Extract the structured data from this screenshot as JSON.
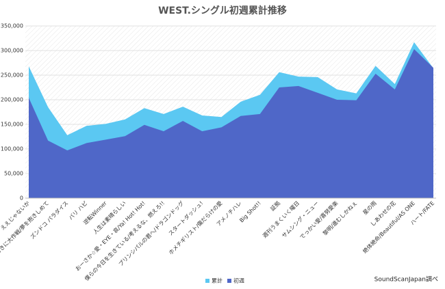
{
  "chart_data": {
    "type": "area",
    "title": "WEST.シングル初週累計推移",
    "categories": [
      "ええじゃないか",
      "おおきに大作戦/夢を抱きしめて",
      "ズンドコ パラダイス",
      "バリ ハピ",
      "逆転Winner",
      "人生は素晴らしい",
      "おーさか☆愛・EYE・哀/Ya! Hot! Hot!",
      "僕らの今日を生きている/考えるな、燃えろ!!",
      "プリンシパルの君へ/ドラゴンドッグ",
      "スタートダッシュ!",
      "ホメチギリスト/傷だらけの愛",
      "アメノチハレ",
      "Big Shot!!",
      "証拠",
      "週刊うまくいく曜日",
      "サムシング・ニュー",
      "でっかい愛/喜努愛楽",
      "黎明/進むしかねぇ",
      "星の雨",
      "しあわせの花",
      "絶体絶命/Beautiful/AS ONE",
      "ハート/FATE"
    ],
    "series": [
      {
        "name": "累計",
        "color": "#5bc8f2",
        "values": [
          268000,
          185000,
          128000,
          147000,
          151000,
          160000,
          183000,
          171000,
          186000,
          168000,
          165000,
          196000,
          210000,
          256000,
          247000,
          246000,
          221000,
          213000,
          269000,
          232000,
          317000,
          264000
        ]
      },
      {
        "name": "初週",
        "color": "#4f67c8",
        "values": [
          204000,
          117000,
          97000,
          112000,
          119000,
          126000,
          149000,
          136000,
          157000,
          136000,
          144000,
          167000,
          171000,
          225000,
          228000,
          214000,
          200000,
          199000,
          253000,
          221000,
          303000,
          265000
        ]
      }
    ],
    "ylim": [
      0,
      350000
    ],
    "yticks": [
      0,
      {
        "value": 50000,
        "label": "50,000"
      },
      {
        "value": 100000,
        "label": "100,000"
      },
      {
        "value": 150000,
        "label": "150,000"
      },
      {
        "value": 200000,
        "label": "200,000"
      },
      {
        "value": 250000,
        "label": "250,000"
      },
      {
        "value": 300000,
        "label": "300,000"
      },
      {
        "value": 350000,
        "label": "350,000"
      }
    ],
    "grid": true,
    "legend": "bottom",
    "note": "SoundScanJapan調べ"
  }
}
